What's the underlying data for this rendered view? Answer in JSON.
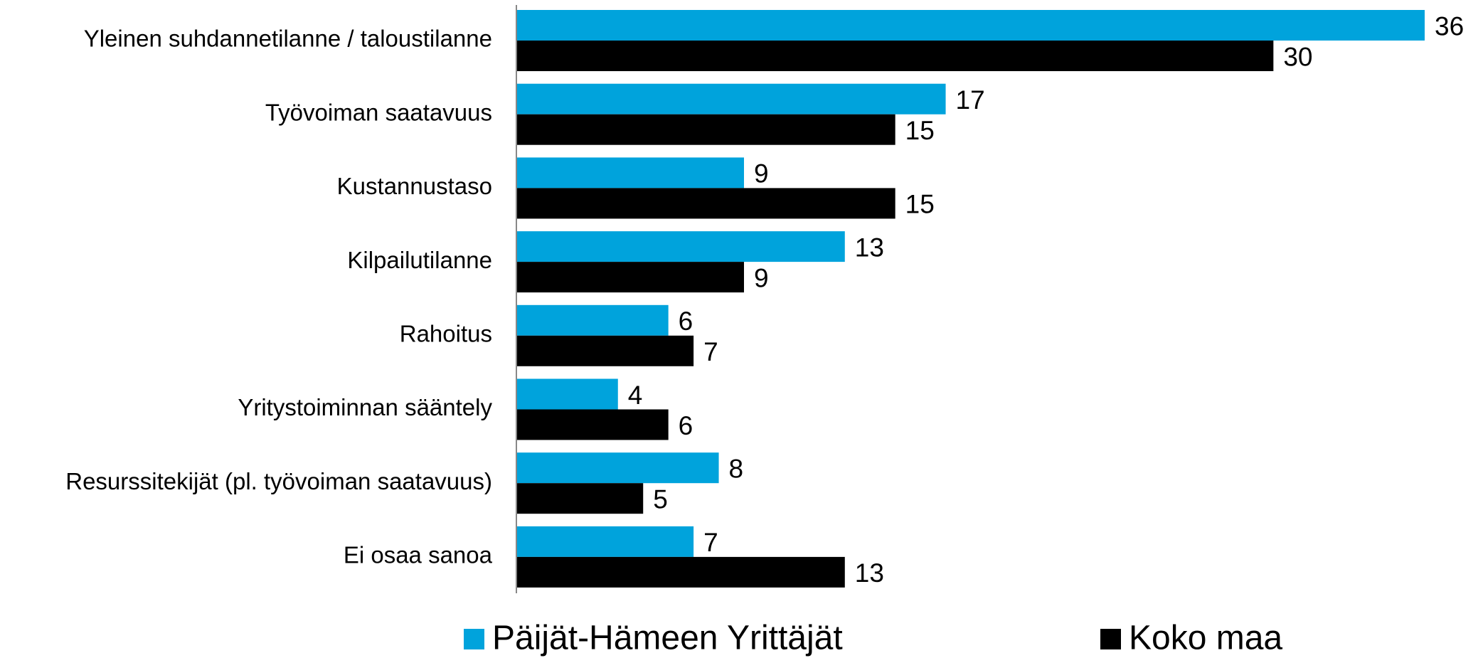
{
  "chart_data": {
    "type": "hbar",
    "categories": [
      "Yleinen suhdannetilanne / taloustilanne",
      "Työvoiman saatavuus",
      "Kustannustaso",
      "Kilpailutilanne",
      "Rahoitus",
      "Yritystoiminnan sääntely",
      "Resurssitekijät (pl. työvoiman saatavuus)",
      "Ei osaa sanoa"
    ],
    "series": [
      {
        "name": "Päijät-Hämeen Yrittäjät",
        "color": "#00a3dc",
        "values": [
          36,
          17,
          9,
          13,
          6,
          4,
          8,
          7
        ]
      },
      {
        "name": "Koko maa",
        "color": "#000000",
        "values": [
          30,
          15,
          15,
          9,
          7,
          6,
          5,
          13
        ]
      }
    ],
    "legend": "bottom"
  }
}
